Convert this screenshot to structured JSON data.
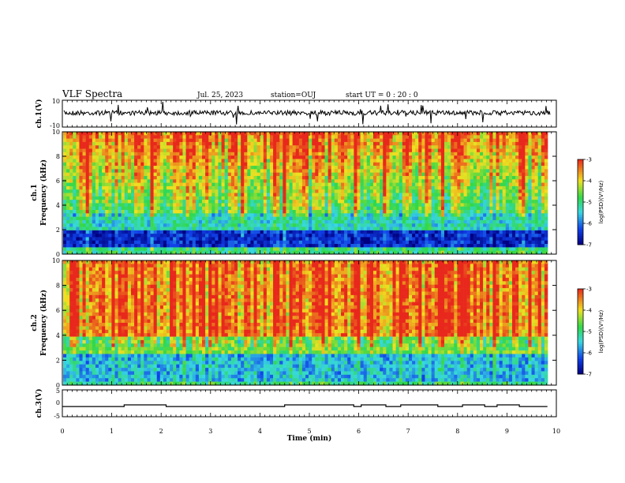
{
  "header": {
    "title": "VLF Spectra",
    "date": "Jul. 25, 2023",
    "station": "station=OUJ",
    "start": "start  UT =   0 : 20 : 0"
  },
  "chart_data": [
    {
      "type": "line",
      "ylabel": "ch.1(V)",
      "ylim": [
        -10,
        10
      ],
      "yticks": [
        "10",
        "-10"
      ],
      "xlim": [
        0,
        10
      ]
    },
    {
      "type": "heatmap",
      "ylabel_top": "ch.1",
      "ylabel": "Frequency  (kHz)",
      "ylim": [
        0,
        10
      ],
      "yticks": [
        "0",
        "2",
        "4",
        "6",
        "8",
        "10"
      ],
      "colorbar": {
        "label": "log(PSD)(V²/Hz)",
        "ticks": [
          "-3",
          "-4",
          "-5",
          "-6",
          "-7"
        ],
        "range": [
          -7,
          -3
        ]
      }
    },
    {
      "type": "heatmap",
      "ylabel_top": "ch.2",
      "ylabel": "Frequency  (kHz)",
      "ylim": [
        0,
        10
      ],
      "yticks": [
        "0",
        "2",
        "4",
        "6",
        "8",
        "10"
      ],
      "colorbar": {
        "label": "log(PSD)(V²/Hz)",
        "ticks": [
          "-3",
          "-4",
          "-5",
          "-6",
          "-7"
        ],
        "range": [
          -7,
          -3
        ]
      }
    },
    {
      "type": "line",
      "ylabel": "ch.3(V)",
      "ylim": [
        -5,
        5
      ],
      "yticks": [
        "5",
        "0",
        "-5"
      ],
      "segments_min": [
        [
          1.25,
          2.1
        ],
        [
          4.5,
          5.9
        ],
        [
          6.05,
          6.55
        ],
        [
          6.85,
          7.6
        ],
        [
          8.1,
          8.55
        ],
        [
          8.8,
          9.25
        ]
      ],
      "baseline": -1.2,
      "high": -0.6
    }
  ],
  "xaxis": {
    "label": "Time  (min)",
    "ticks": [
      "0",
      "1",
      "2",
      "3",
      "4",
      "5",
      "6",
      "7",
      "8",
      "9",
      "10"
    ],
    "xlim": [
      0,
      10
    ]
  },
  "colors": {
    "red": "#e8281c",
    "yellow": "#f0e020",
    "green": "#30d84a",
    "cyan": "#38d8e0",
    "blue": "#1040e8",
    "navy": "#000080"
  }
}
